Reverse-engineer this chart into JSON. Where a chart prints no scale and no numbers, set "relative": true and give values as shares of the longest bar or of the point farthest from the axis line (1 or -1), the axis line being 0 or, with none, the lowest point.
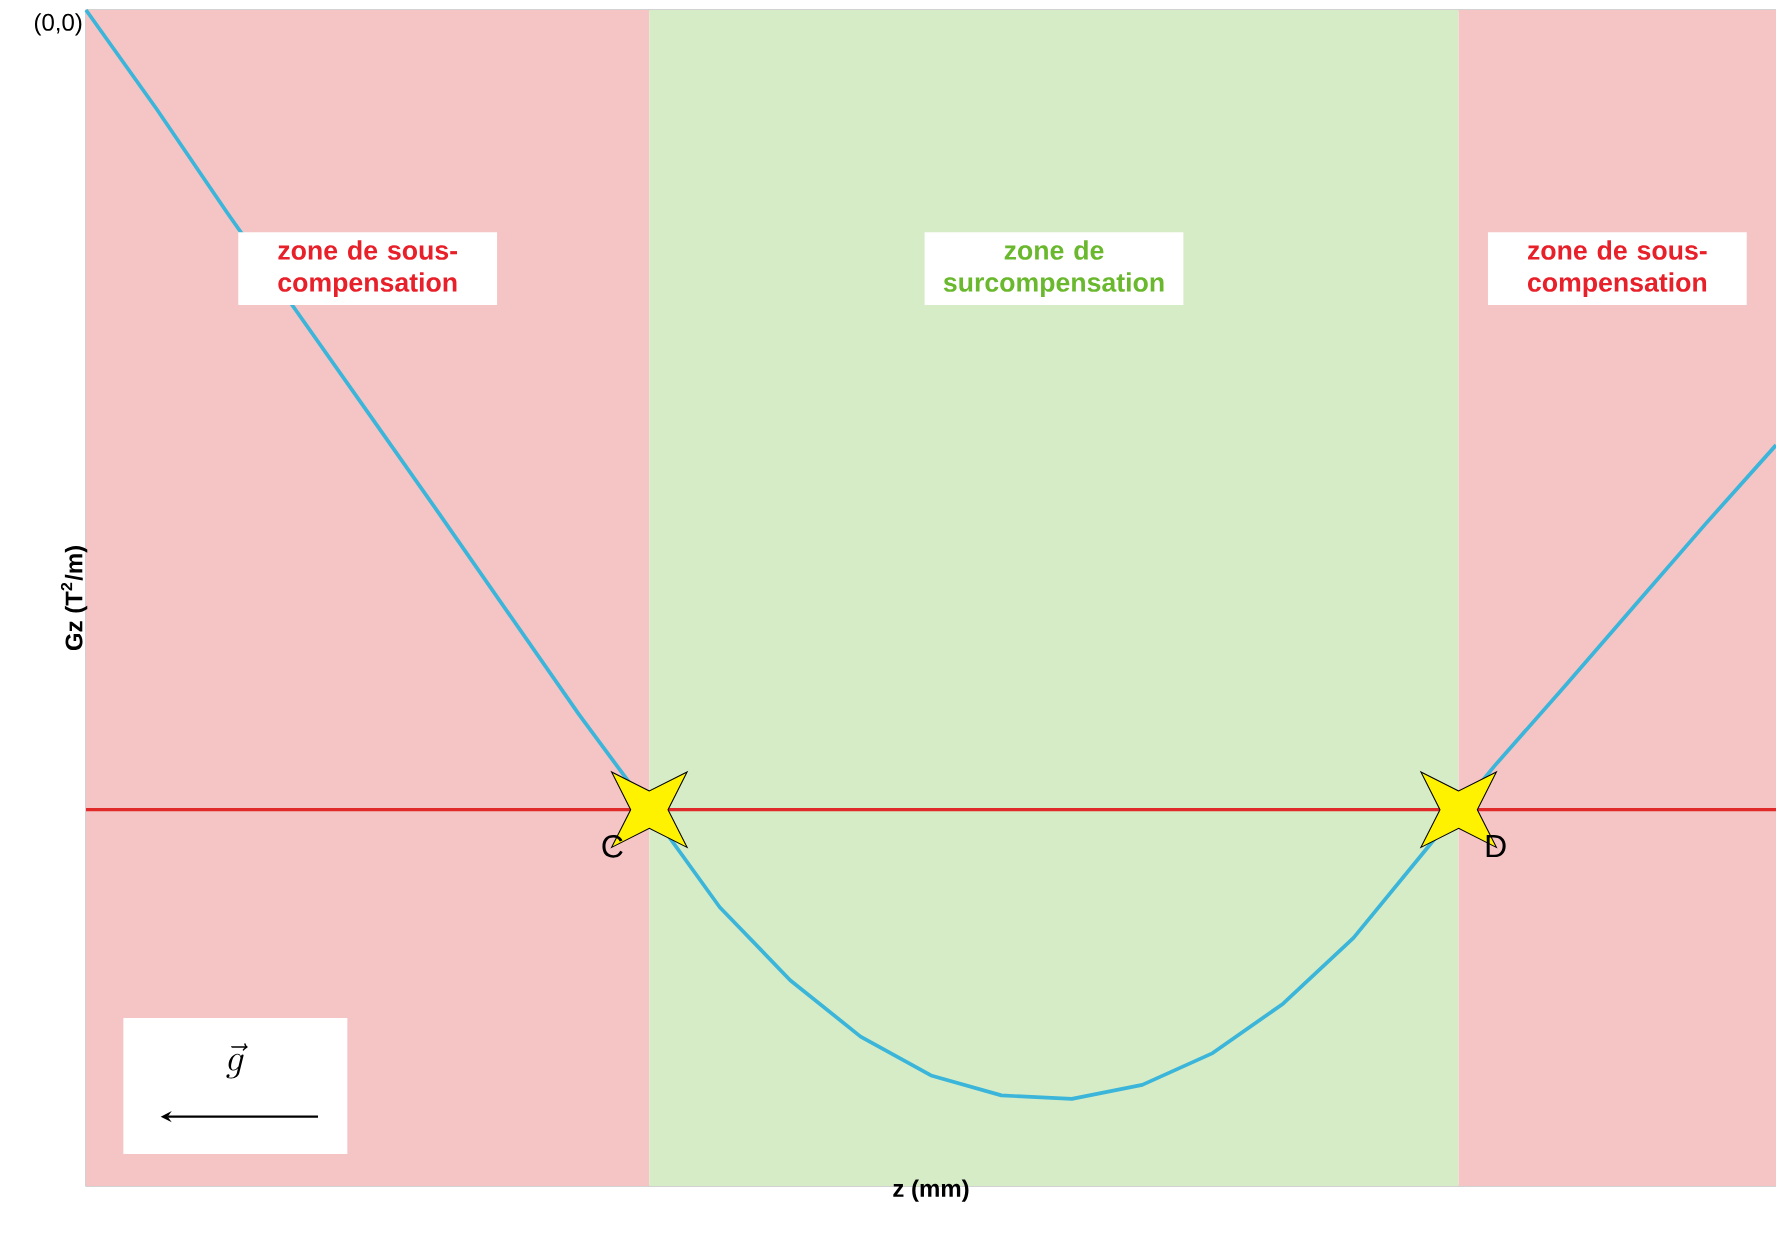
{
  "chart_data": {
    "type": "line",
    "relative": true,
    "xlabel": "z (mm)",
    "ylabel": "Gz (T$^{2}$/m)",
    "categories": [
      null,
      null,
      null,
      null,
      null,
      null,
      null,
      null,
      null,
      null,
      null,
      null,
      null,
      null,
      null,
      null,
      null,
      null,
      null,
      null,
      null,
      null,
      null,
      null,
      null
    ],
    "series": [
      {
        "color": "#3bb5d9",
        "values": [
          1.0,
          0.916,
          0.828,
          0.743,
          0.658,
          0.573,
          0.487,
          0.401,
          0.32,
          0.237,
          0.175,
          0.127,
          0.094,
          0.077,
          0.074,
          0.086,
          0.113,
          0.155,
          0.211,
          0.284,
          0.357,
          0.425,
          0.494,
          0.563,
          0.63
        ]
      }
    ],
    "ref_lines": [
      {
        "axis": "y",
        "value": 0.32,
        "color": "#e02a2a"
      }
    ],
    "annotations": [
      "zone de sous-compensation",
      "zone de surcompensation",
      "zone de sous-compensation",
      "(0,0)",
      "C",
      "D",
      "\\vec{g}"
    ],
    "tick_labels": false
  }
}
